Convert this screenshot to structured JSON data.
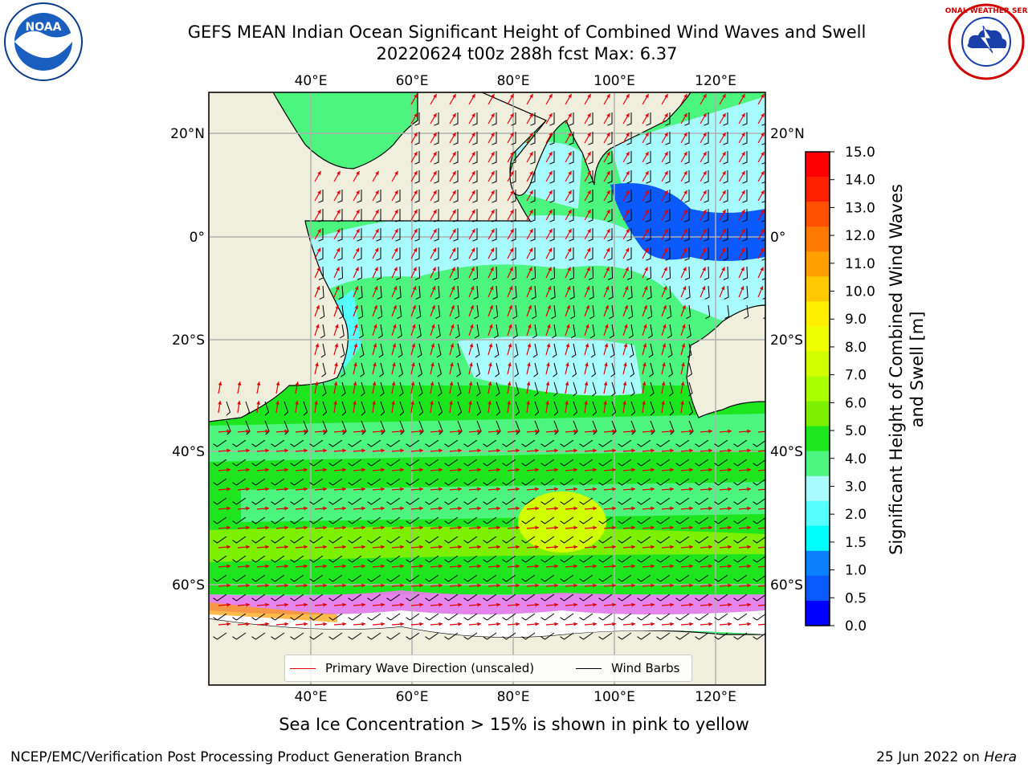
{
  "header": {
    "title_line1": "GEFS MEAN Indian Ocean Significant Height of Combined Wind Waves and Swell",
    "title_line2": "20220624 t00z 288h fcst   Max: 6.37"
  },
  "logos": {
    "noaa_text": "NOAA",
    "nws_text": "NATIONAL WEATHER SERVICE"
  },
  "map": {
    "lon_ticks_top": [
      "40°E",
      "60°E",
      "80°E",
      "100°E",
      "120°E"
    ],
    "lon_ticks_bottom": [
      "40°E",
      "60°E",
      "80°E",
      "100°E",
      "120°E"
    ],
    "lat_ticks_left": [
      "20°N",
      "0°",
      "20°S",
      "40°S",
      "60°S"
    ],
    "lat_ticks_right": [
      "20°N",
      "0°",
      "20°S",
      "40°S",
      "60°S"
    ],
    "colors": {
      "land": "#f0eedd",
      "ice_free_white": "#ffffff",
      "ocean_light_cyan": "#a8fbff",
      "ocean_green": "#4cf57d",
      "ocean_bright_green": "#1ee61e",
      "ocean_lime": "#7df000",
      "ocean_yellow_green": "#d2ff00",
      "shallow_blue": "#0a5aff",
      "wave_arrow": "#e00000",
      "barb": "#000000"
    }
  },
  "legend": {
    "wave_dir_label": "Primary Wave Direction (unscaled)",
    "barbs_label": "Wind Barbs"
  },
  "colorbar": {
    "label": "Significant Height of Combined Wind Waves and Swell [m]",
    "ticks": [
      "15.0",
      "14.0",
      "13.0",
      "12.0",
      "11.0",
      "10.0",
      "9.0",
      "8.0",
      "7.0",
      "6.0",
      "5.0",
      "4.0",
      "3.0",
      "2.0",
      "1.5",
      "1.0",
      "0.5",
      "0.0"
    ],
    "colors": [
      "#ff0000",
      "#ff2000",
      "#ff5000",
      "#ff7800",
      "#ffa000",
      "#ffc800",
      "#fff000",
      "#f0ff00",
      "#d2ff00",
      "#aaff00",
      "#7df000",
      "#1ee61e",
      "#4cf57d",
      "#a8fbff",
      "#55ffff",
      "#00ffff",
      "#0a80ff",
      "#0a5aff",
      "#0000ff"
    ]
  },
  "footer": {
    "note": "Sea Ice Concentration > 15% is shown in pink to yellow",
    "credit": "NCEP/EMC/Verification Post Processing Product Generation Branch",
    "date": "25 Jun 2022 on",
    "host": "Hera"
  }
}
